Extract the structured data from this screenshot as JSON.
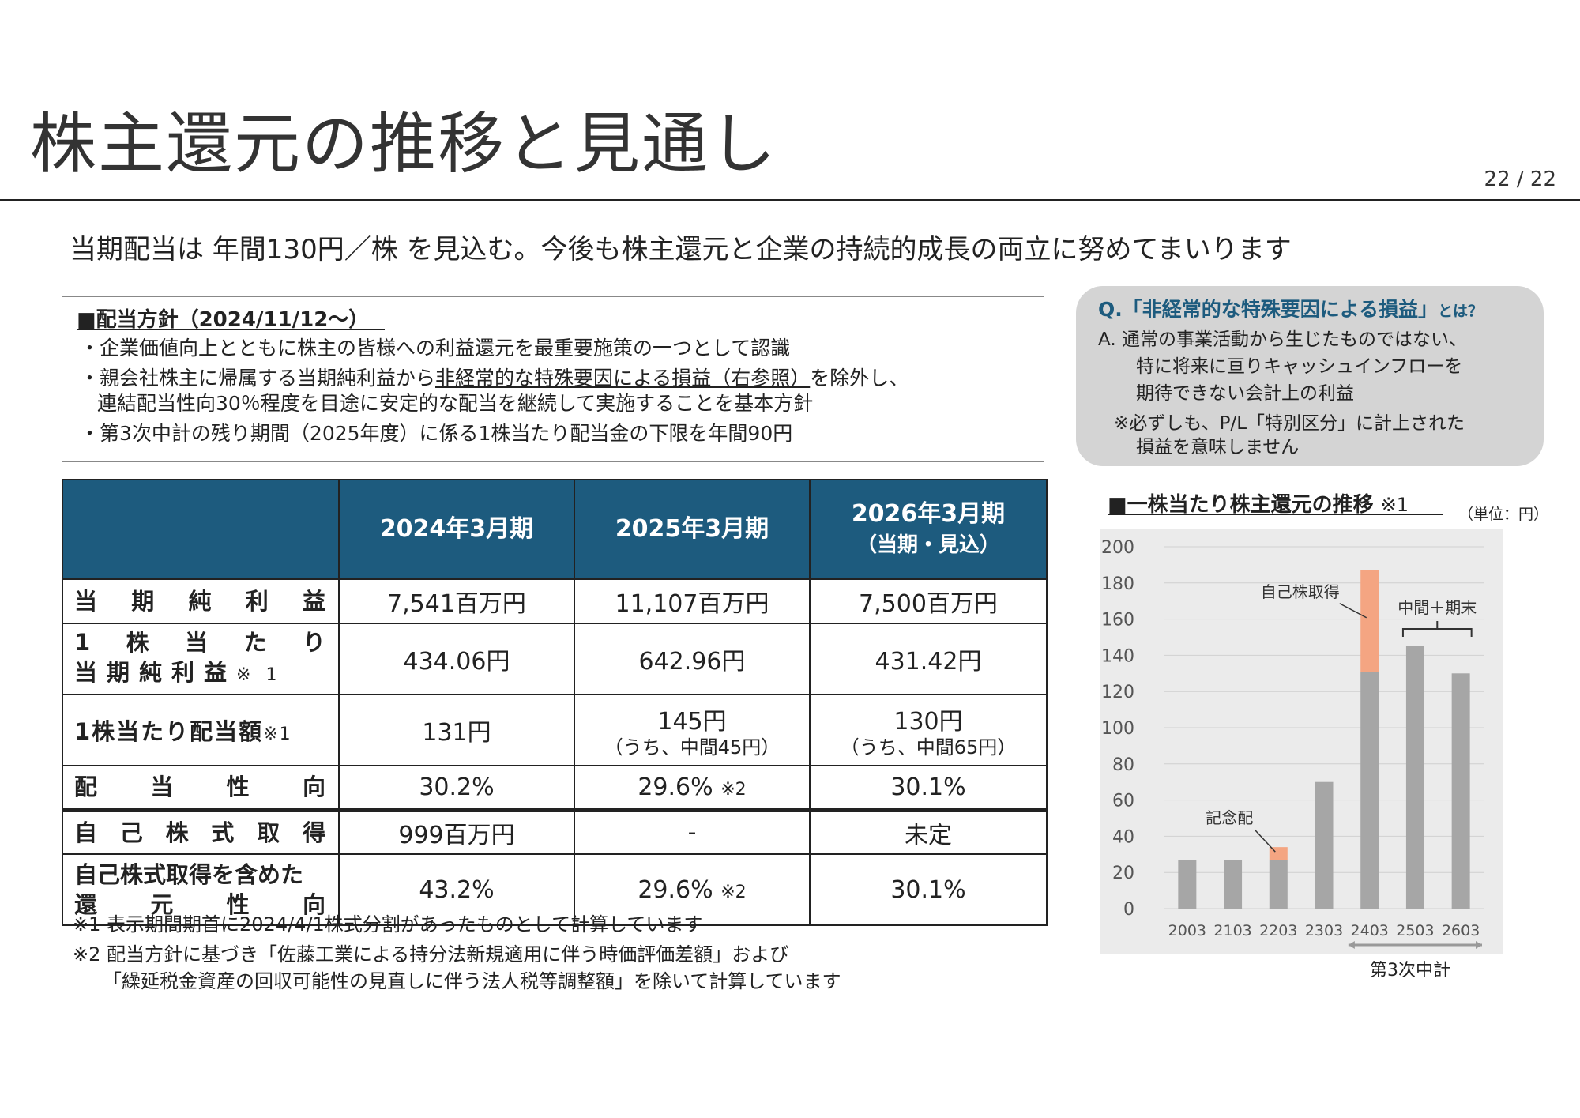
{
  "page": {
    "title": "株主還元の推移と見通し",
    "page_number": "22 / 22",
    "subtitle": "当期配当は 年間130円／株 を見込む。今後も株主還元と企業の持続的成長の両立に努めてまいります"
  },
  "policy": {
    "title": "■配当方針（2024/11/12～）",
    "line1": "・企業価値向上とともに株主の皆様への利益還元を最重要施策の一つとして認識",
    "line2_pre": "・親会社株主に帰属する当期純利益から",
    "line2_ul": "非経常的な特殊要因による損益（右参照）",
    "line2_post": "を除外し、",
    "line3": "連結配当性向30％程度を目途に安定的な配当を継続して実施することを基本方針",
    "line4": "・第3次中計の残り期間（2025年度）に係る1株当たり配当金の下限を年間90円"
  },
  "table": {
    "headers": [
      "2024年3月期",
      "2025年3月期",
      "2026年3月期",
      "（当期・見込）"
    ],
    "rows": {
      "net_income": {
        "label": "当期純利益",
        "values": [
          "7,541百万円",
          "11,107百万円",
          "7,500百万円"
        ]
      },
      "eps": {
        "label_a": "1株当たり",
        "label_b": "当期純利益",
        "label_note": "※ 1",
        "values": [
          "434.06円",
          "642.96円",
          "431.42円"
        ]
      },
      "dps": {
        "label": "1株当たり配当額",
        "label_note": "※1",
        "values": [
          "131円",
          "145円",
          "130円"
        ],
        "subs": [
          "（うち、中間45円）",
          "（うち、中間65円）"
        ]
      },
      "payout": {
        "label": "配当性向",
        "values": [
          "30.2%",
          "29.6%",
          "30.1%"
        ],
        "note": "※2"
      },
      "buyback": {
        "label": "自己株式取得",
        "values": [
          "999百万円",
          "-",
          "未定"
        ]
      },
      "total_return": {
        "label_a": "自己株式取得を含めた",
        "label_b": "還元性向",
        "values": [
          "43.2%",
          "29.6%",
          "30.1%"
        ],
        "note": "※2"
      }
    }
  },
  "notes": {
    "n1": "※1 表示期間期首に2024/4/1株式分割があったものとして計算しています",
    "n2": "※2 配当方針に基づき「佐藤工業による持分法新規適用に伴う時価評価差額」および",
    "n3": "「繰延税金資産の回収可能性の見直しに伴う法人税等調整額」を除いて計算しています"
  },
  "qa": {
    "q_main": "Q.「非経常的な特殊要因による損益」",
    "q_suffix": "とは？",
    "a1": "A.  通常の事業活動から生じたものではない、",
    "a2": "特に将来に亘りキャッシュインフローを",
    "a3": "期待できない会計上の利益",
    "a4": "※必ずしも、P/L「特別区分」に計上された",
    "a5": "損益を意味しません"
  },
  "chart_header": {
    "title": "■一株当たり株主還元の推移",
    "title_note": "※1",
    "unit": "（単位：円）",
    "phase_label": "第3次中計"
  },
  "chart_data": {
    "type": "bar",
    "stacked": true,
    "categories": [
      "2003",
      "2103",
      "2203",
      "2303",
      "2403",
      "2503",
      "2603"
    ],
    "series": [
      {
        "name": "",
        "color": "#a6a6a6",
        "values": [
          27,
          27,
          27,
          70,
          131,
          145,
          130
        ]
      },
      {
        "name": "",
        "color": "#f4a582",
        "values": [
          0,
          0,
          7,
          0,
          56,
          0,
          0
        ]
      }
    ],
    "ylim": [
      0,
      200
    ],
    "yticks": [
      0,
      20,
      40,
      60,
      80,
      100,
      120,
      140,
      160,
      180,
      200
    ],
    "grid": true,
    "annotations": [
      {
        "text": "記念配",
        "category": "2203"
      },
      {
        "text": "自己株取得",
        "category": "2403"
      },
      {
        "text": "中間＋期末",
        "categories": [
          "2503",
          "2603"
        ]
      }
    ],
    "phase_range": [
      "2403",
      "2603"
    ],
    "background": "#ebebeb"
  }
}
